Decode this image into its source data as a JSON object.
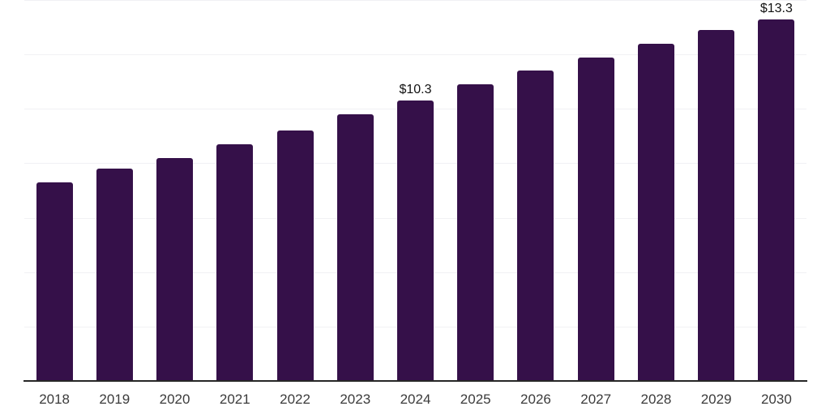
{
  "chart_data": {
    "type": "bar",
    "title": "",
    "xlabel": "",
    "ylabel": "",
    "categories": [
      "2018",
      "2019",
      "2020",
      "2021",
      "2022",
      "2023",
      "2024",
      "2025",
      "2026",
      "2027",
      "2028",
      "2029",
      "2030"
    ],
    "values": [
      7.3,
      7.8,
      8.2,
      8.7,
      9.2,
      9.8,
      10.3,
      10.9,
      11.4,
      11.9,
      12.4,
      12.9,
      13.3
    ],
    "data_labels": [
      null,
      null,
      null,
      null,
      null,
      null,
      "$10.3",
      null,
      null,
      null,
      null,
      null,
      "$13.3"
    ],
    "ylim": [
      0,
      14
    ],
    "gridline_step": 2,
    "grid": true,
    "legend": "none",
    "y_axis_labels_visible": false,
    "colors": {
      "bar": "#351049",
      "axis_line": "#262626",
      "gridline": "#f1f1f4",
      "data_label": "#111111",
      "tick_label": "#3b3b3b",
      "background": "#ffffff"
    }
  }
}
